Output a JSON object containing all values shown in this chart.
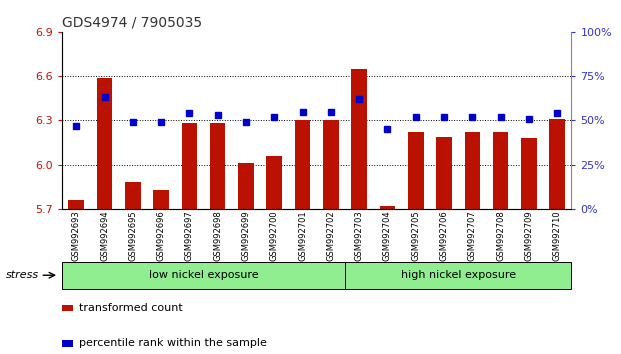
{
  "title": "GDS4974 / 7905035",
  "samples": [
    "GSM992693",
    "GSM992694",
    "GSM992695",
    "GSM992696",
    "GSM992697",
    "GSM992698",
    "GSM992699",
    "GSM992700",
    "GSM992701",
    "GSM992702",
    "GSM992703",
    "GSM992704",
    "GSM992705",
    "GSM992706",
    "GSM992707",
    "GSM992708",
    "GSM992709",
    "GSM992710"
  ],
  "transformed_count": [
    5.76,
    6.59,
    5.88,
    5.83,
    6.28,
    6.28,
    6.01,
    6.06,
    6.3,
    6.3,
    6.65,
    5.72,
    6.22,
    6.19,
    6.22,
    6.22,
    6.18,
    6.31
  ],
  "percentile_rank": [
    47,
    63,
    49,
    49,
    54,
    53,
    49,
    52,
    55,
    55,
    62,
    45,
    52,
    52,
    52,
    52,
    51,
    54
  ],
  "ylim_left": [
    5.7,
    6.9
  ],
  "ylim_right": [
    0,
    100
  ],
  "yticks_left": [
    5.7,
    6.0,
    6.3,
    6.6,
    6.9
  ],
  "yticks_right": [
    0,
    25,
    50,
    75,
    100
  ],
  "bar_color": "#bb1100",
  "dot_color": "#0000cc",
  "bar_bottom": 5.7,
  "grid_lines": [
    6.0,
    6.3,
    6.6
  ],
  "group1_label": "low nickel exposure",
  "group2_label": "high nickel exposure",
  "group_label": "stress",
  "legend_bar": "transformed count",
  "legend_dot": "percentile rank within the sample",
  "background_color": "#ffffff",
  "tick_label_color_left": "#cc1100",
  "tick_label_color_right": "#3333cc",
  "title_color": "#333333",
  "n_low": 10,
  "n_high": 8
}
